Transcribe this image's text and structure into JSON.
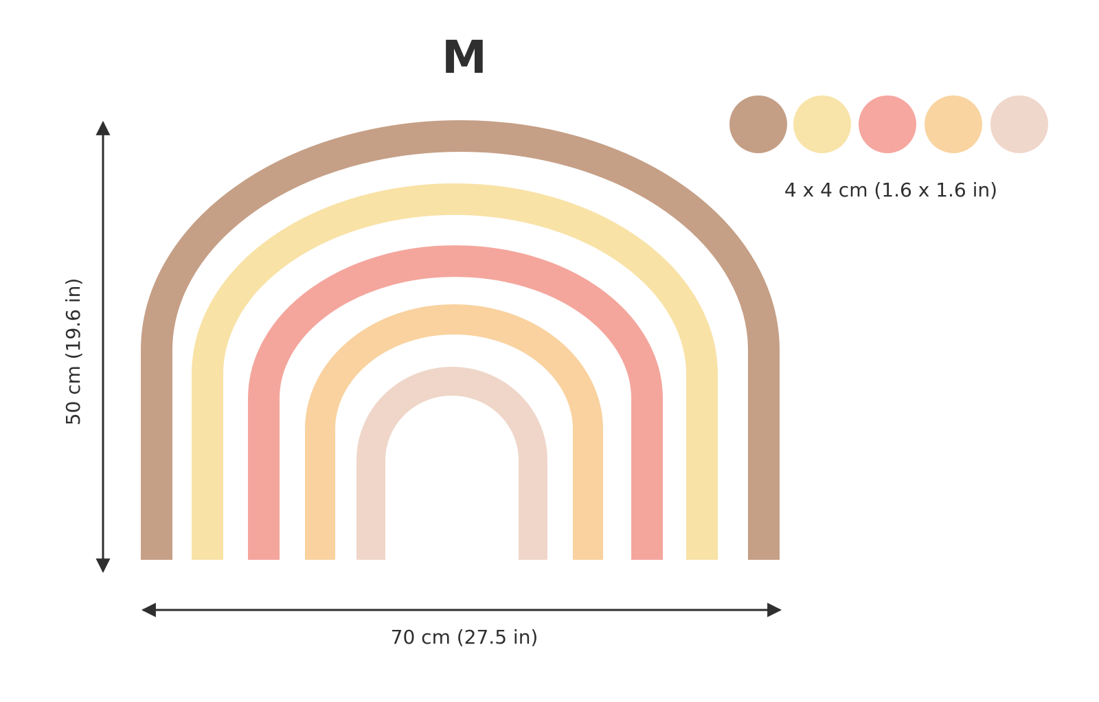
{
  "title": "M",
  "width_label": "70 cm (27.5 in)",
  "height_label": "50 cm (19.6 in)",
  "dots_label": "4 x 4 cm (1.6 x 1.6 in)"
}
